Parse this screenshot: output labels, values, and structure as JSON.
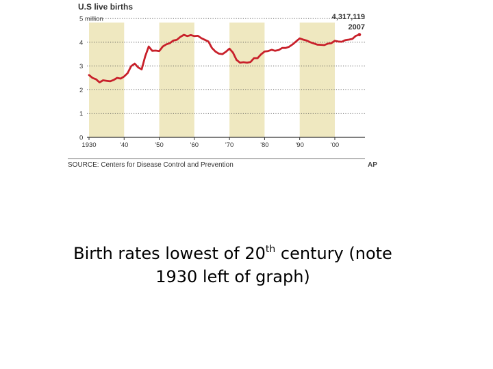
{
  "chart_data": {
    "type": "line",
    "title": "U.S live births",
    "ytick_labels": [
      "0",
      "1",
      "2",
      "3",
      "4",
      "5 million"
    ],
    "ytick_values": [
      0,
      1,
      2,
      3,
      4,
      5
    ],
    "xtick_labels": [
      "1930",
      "'40",
      "'50",
      "'60",
      "'70",
      "'80",
      "'90",
      "'00"
    ],
    "xtick_values": [
      1930,
      1940,
      1950,
      1960,
      1970,
      1980,
      1990,
      2000
    ],
    "xlim": [
      1930,
      2008
    ],
    "ylim": [
      0,
      5
    ],
    "grid": true,
    "shaded_decades": [
      [
        1930,
        1940
      ],
      [
        1950,
        1960
      ],
      [
        1970,
        1980
      ],
      [
        1990,
        2000
      ]
    ],
    "colors": {
      "line": "#c8202a",
      "band": "#efe8c0",
      "grid": "#555555"
    },
    "annotation": {
      "value": "4,317,119",
      "year": "2007"
    },
    "source": "SOURCE: Centers for Disease Control and Prevention",
    "credit": "AP",
    "series": [
      {
        "x": [
          1930,
          1931,
          1932,
          1933,
          1934,
          1935,
          1936,
          1937,
          1938,
          1939,
          1940,
          1941,
          1942,
          1943,
          1944,
          1945,
          1946,
          1947,
          1948,
          1949,
          1950,
          1951,
          1952,
          1953,
          1954,
          1955,
          1956,
          1957,
          1958,
          1959,
          1960,
          1961,
          1962,
          1963,
          1964,
          1965,
          1966,
          1967,
          1968,
          1969,
          1970,
          1971,
          1972,
          1973,
          1974,
          1975,
          1976,
          1977,
          1978,
          1979,
          1980,
          1981,
          1982,
          1983,
          1984,
          1985,
          1986,
          1987,
          1988,
          1989,
          1990,
          1991,
          1992,
          1993,
          1994,
          1995,
          1996,
          1997,
          1998,
          1999,
          2000,
          2001,
          2002,
          2003,
          2004,
          2005,
          2006,
          2007
        ],
        "values": [
          2.62,
          2.5,
          2.44,
          2.31,
          2.4,
          2.38,
          2.36,
          2.41,
          2.5,
          2.47,
          2.56,
          2.7,
          2.99,
          3.1,
          2.94,
          2.86,
          3.41,
          3.82,
          3.64,
          3.65,
          3.63,
          3.82,
          3.91,
          3.96,
          4.07,
          4.1,
          4.22,
          4.31,
          4.26,
          4.3,
          4.26,
          4.27,
          4.17,
          4.1,
          4.03,
          3.76,
          3.61,
          3.52,
          3.5,
          3.6,
          3.73,
          3.56,
          3.26,
          3.14,
          3.16,
          3.14,
          3.17,
          3.33,
          3.33,
          3.49,
          3.61,
          3.63,
          3.68,
          3.64,
          3.67,
          3.76,
          3.76,
          3.81,
          3.91,
          4.04,
          4.16,
          4.11,
          4.07,
          4.0,
          3.95,
          3.9,
          3.89,
          3.88,
          3.94,
          3.96,
          4.06,
          4.03,
          4.02,
          4.09,
          4.11,
          4.14,
          4.27,
          4.32
        ]
      }
    ]
  },
  "caption": {
    "before_sup": "Birth rates lowest of 20",
    "sup": "th",
    "after_sup": " century (note",
    "line2": "1930 left of graph)"
  }
}
